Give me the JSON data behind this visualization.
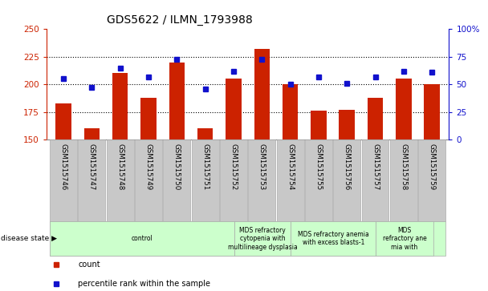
{
  "title": "GDS5622 / ILMN_1793988",
  "samples": [
    "GSM1515746",
    "GSM1515747",
    "GSM1515748",
    "GSM1515749",
    "GSM1515750",
    "GSM1515751",
    "GSM1515752",
    "GSM1515753",
    "GSM1515754",
    "GSM1515755",
    "GSM1515756",
    "GSM1515757",
    "GSM1515758",
    "GSM1515759"
  ],
  "count_values": [
    183,
    160,
    210,
    188,
    220,
    160,
    205,
    232,
    200,
    176,
    177,
    188,
    205,
    200
  ],
  "percentile_values": [
    55,
    47,
    65,
    57,
    73,
    46,
    62,
    73,
    50,
    57,
    51,
    57,
    62,
    61
  ],
  "ylim_left": [
    150,
    250
  ],
  "ylim_right": [
    0,
    100
  ],
  "yticks_left": [
    150,
    175,
    200,
    225,
    250
  ],
  "yticks_right": [
    0,
    25,
    50,
    75,
    100
  ],
  "bar_color": "#cc2200",
  "dot_color": "#1111cc",
  "background_color": "#ffffff",
  "axis_color_left": "#cc2200",
  "axis_color_right": "#1111cc",
  "gray_color": "#c8c8c8",
  "green_color": "#ccffcc",
  "group_edge_color": "#aaaaaa",
  "disease_groups": [
    {
      "label": "control",
      "start": 0,
      "end": 6,
      "color": "#ccffcc"
    },
    {
      "label": "MDS refractory\ncytopenia with\nmultilineage dysplasia",
      "start": 7,
      "end": 8,
      "color": "#ccffcc"
    },
    {
      "label": "MDS refractory anemia\nwith excess blasts-1",
      "start": 9,
      "end": 11,
      "color": "#ccffcc"
    },
    {
      "label": "MDS\nrefractory ane\nmia with",
      "start": 12,
      "end": 13,
      "color": "#ccffcc"
    }
  ],
  "disease_state_label": "disease state",
  "legend_items": [
    {
      "label": "count",
      "color": "#cc2200"
    },
    {
      "label": "percentile rank within the sample",
      "color": "#1111cc"
    }
  ]
}
